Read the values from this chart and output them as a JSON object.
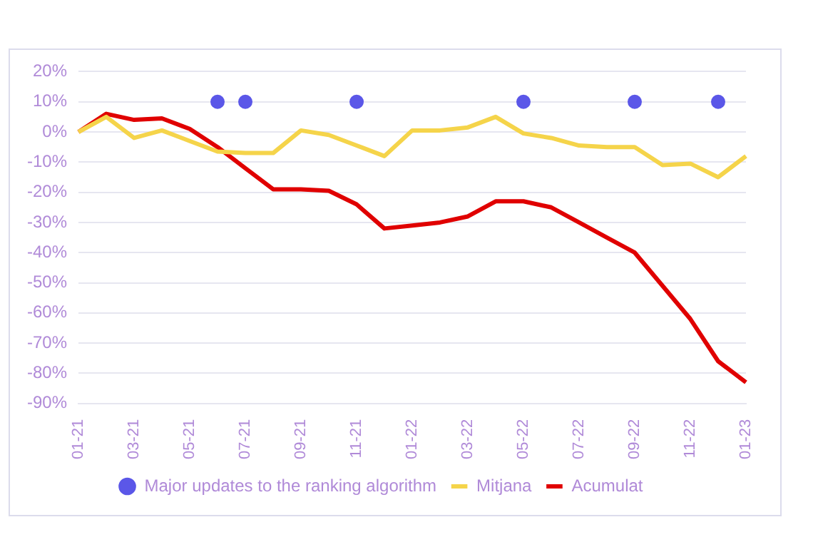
{
  "chart_data": {
    "type": "line",
    "categories": [
      "01-21",
      null,
      "03-21",
      null,
      "05-21",
      null,
      "07-21",
      null,
      "09-21",
      null,
      "11-21",
      null,
      "01-22",
      null,
      "03-22",
      null,
      "05-22",
      null,
      "07-22",
      null,
      "09-22",
      null,
      "11-22",
      null,
      "01-23"
    ],
    "series": [
      {
        "name": "Major updates to the ranking algorithm",
        "type": "scatter",
        "marker": "circle",
        "color": "#5b57e8",
        "values": [
          null,
          null,
          null,
          null,
          null,
          10,
          10,
          null,
          null,
          null,
          10,
          null,
          null,
          null,
          null,
          null,
          10,
          null,
          null,
          null,
          10,
          null,
          null,
          10,
          null
        ]
      },
      {
        "name": "Mitjana",
        "color": "#f5d44a",
        "values": [
          0,
          5,
          -2,
          0.5,
          -3,
          -6.5,
          -7,
          -7,
          0.5,
          -1,
          -4.5,
          -8,
          0.5,
          0.5,
          1.5,
          5,
          -0.5,
          -2,
          -4.5,
          -5,
          -5,
          -11,
          -10.5,
          -15,
          -8
        ]
      },
      {
        "name": "Acumulat",
        "color": "#e00000",
        "values": [
          0,
          6,
          4,
          4.5,
          1,
          -5,
          -12,
          -19,
          -19,
          -19.5,
          -24,
          -32,
          -31,
          -30,
          -28,
          -23,
          -23,
          -25,
          -30,
          -35,
          -40,
          -51,
          -62,
          -76,
          -83
        ]
      }
    ],
    "ylim": [
      -90,
      20
    ],
    "yticks": [
      {
        "value": -90,
        "label": "-90%"
      },
      {
        "value": -80,
        "label": "-80%"
      },
      {
        "value": -70,
        "label": "-70%"
      },
      {
        "value": -60,
        "label": "-60%"
      },
      {
        "value": -50,
        "label": "-50%"
      },
      {
        "value": -40,
        "label": "-40%"
      },
      {
        "value": -30,
        "label": "-30%"
      },
      {
        "value": -20,
        "label": "-20%"
      },
      {
        "value": -10,
        "label": "-10%"
      },
      {
        "value": 0,
        "label": "0%"
      },
      {
        "value": 10,
        "label": "10%"
      },
      {
        "value": 20,
        "label": "20%"
      }
    ],
    "grid": "y",
    "legend": "bottom"
  }
}
